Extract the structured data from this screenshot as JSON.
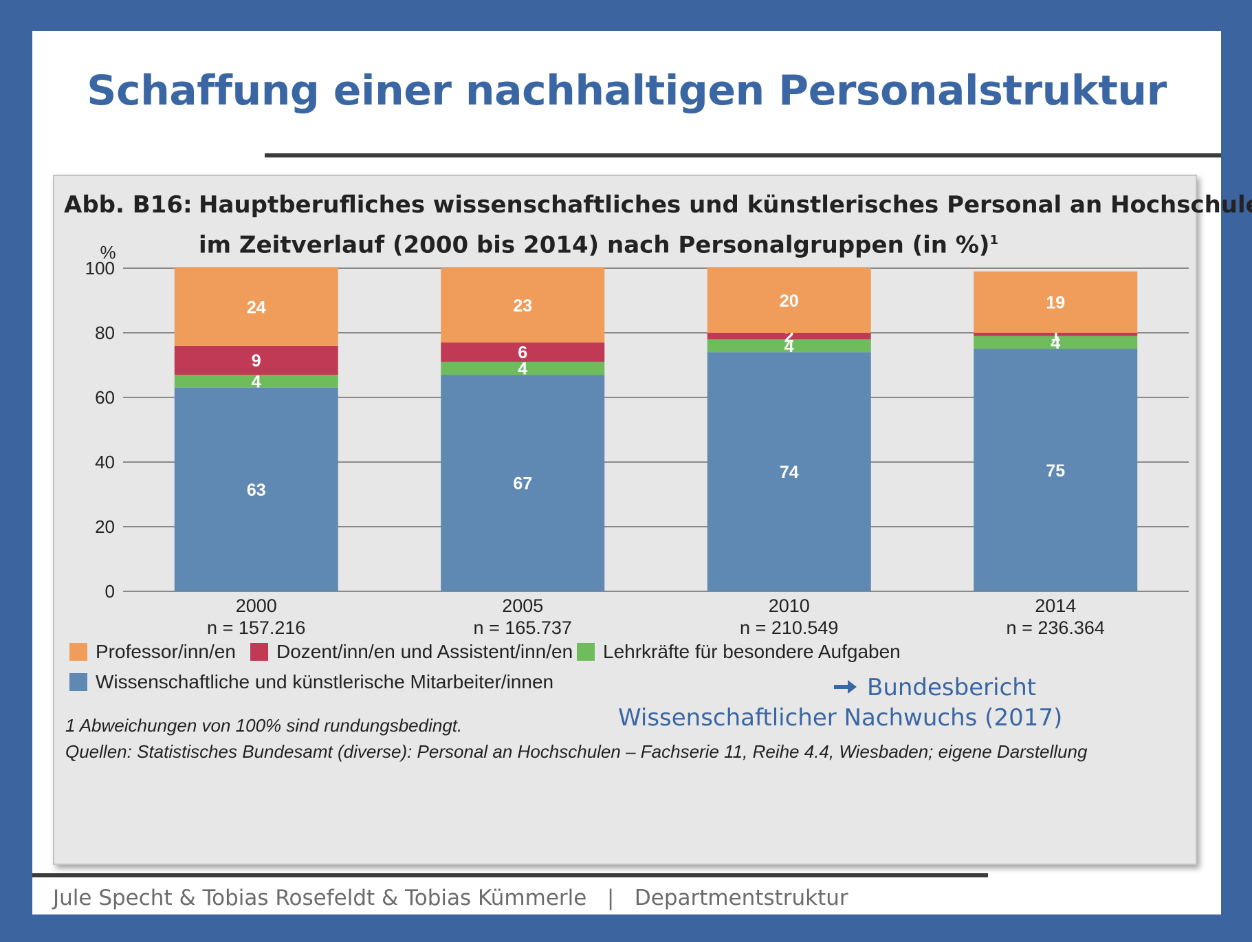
{
  "slide": {
    "title": "Schaffung einer nachhaltigen Personalstruktur",
    "footer": "Jule Specht & Tobias Rosefeldt & Tobias Kümmerle   |   Departmentstruktur"
  },
  "figure": {
    "number": "Abb. B16:",
    "title_line1": "Hauptberufliches wissenschaftliches und künstlerisches Personal an Hochschulen",
    "title_line2": "im Zeitverlauf (2000 bis 2014) nach Personalgruppen (in %)",
    "title_sup": "1",
    "footnote": "1   Abweichungen von 100% sind rundungsbedingt.",
    "sources": "Quellen: Statistisches Bundesamt (diverse): Personal an Hochschulen – Fachserie 11, Reihe 4.4, Wiesbaden; eigene Darstellung"
  },
  "link": {
    "arrow_icon": "arrow-right-icon",
    "line1": "Bundesbericht",
    "line2": "Wissenschaftlicher Nachwuchs (2017)"
  },
  "chart_data": {
    "type": "bar",
    "stacked": true,
    "categories": [
      "2000",
      "2005",
      "2010",
      "2014"
    ],
    "category_sublabels": [
      "n = 157.216",
      "n = 165.737",
      "n = 210.549",
      "n = 236.364"
    ],
    "ylabel": "%",
    "ylim": [
      0,
      100
    ],
    "yticks": [
      0,
      20,
      40,
      60,
      80,
      100
    ],
    "grid": true,
    "series": [
      {
        "name": "Wissenschaftliche und künstlerische Mitarbeiter/innen",
        "values": [
          63,
          67,
          74,
          75
        ],
        "color": "#5f89b2"
      },
      {
        "name": "Lehrkräfte für besondere Aufgaben",
        "values": [
          4,
          4,
          4,
          4
        ],
        "color": "#6fbc5c"
      },
      {
        "name": "Dozent/inn/en und Assistent/inn/en",
        "values": [
          9,
          6,
          2,
          1
        ],
        "color": "#c13a55"
      },
      {
        "name": "Professor/inn/en",
        "values": [
          24,
          23,
          20,
          19
        ],
        "color": "#f09d5c"
      }
    ],
    "legend_order": [
      "Professor/inn/en",
      "Dozent/inn/en und Assistent/inn/en",
      "Lehrkräfte für besondere Aufgaben",
      "Wissenschaftliche und künstlerische Mitarbeiter/innen"
    ],
    "legend_position": "bottom"
  }
}
